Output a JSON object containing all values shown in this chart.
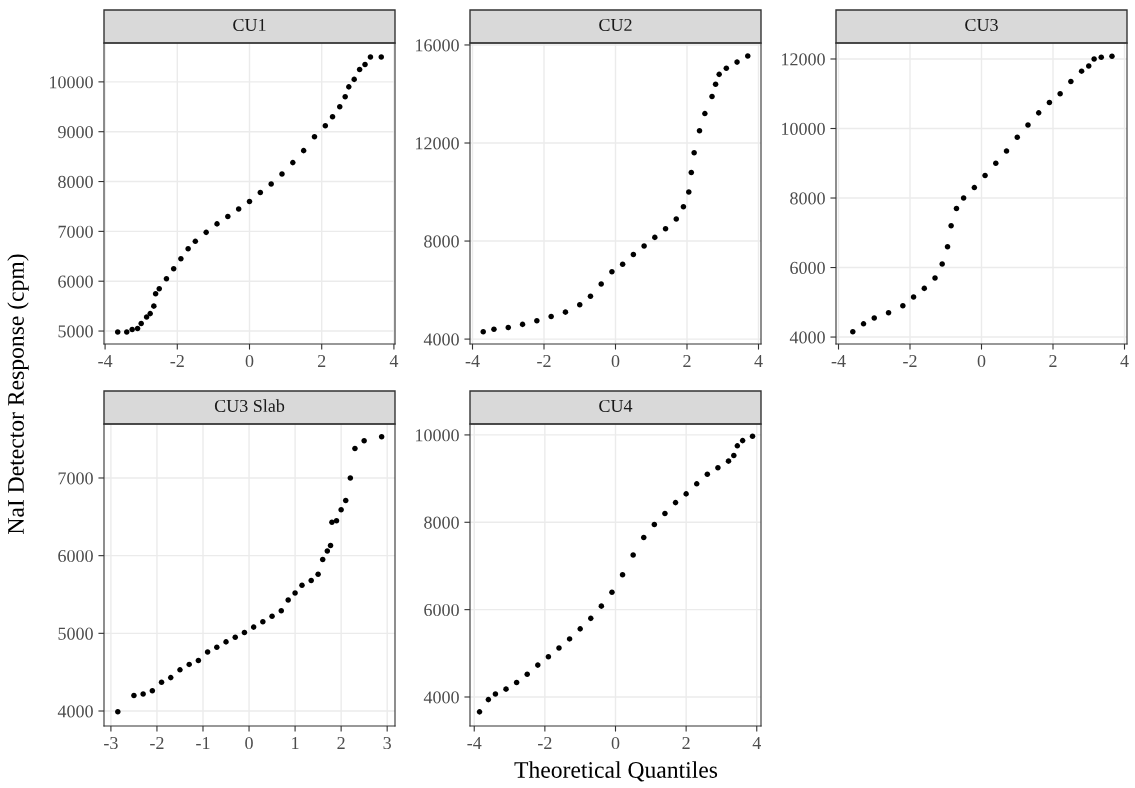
{
  "chart_data": [
    {
      "type": "scatter",
      "title": "CU1",
      "ylabel": "NaI Detector Response (cpm)",
      "color": "#000000",
      "marker": "circle",
      "grid": true,
      "xlim": [
        -4.03,
        4.03
      ],
      "ylim": [
        4740,
        10780
      ],
      "xticks": [
        -4,
        -2,
        0,
        2,
        4
      ],
      "yticks": [
        5000,
        6000,
        7000,
        8000,
        9000,
        10000
      ],
      "x": [
        -3.65,
        -3.4,
        -3.25,
        -3.1,
        -3.0,
        -2.85,
        -2.75,
        -2.65,
        -2.6,
        -2.5,
        -2.3,
        -2.1,
        -1.9,
        -1.7,
        -1.5,
        -1.2,
        -0.9,
        -0.6,
        -0.3,
        0,
        0.3,
        0.6,
        0.9,
        1.2,
        1.5,
        1.8,
        2.1,
        2.3,
        2.5,
        2.65,
        2.75,
        2.9,
        3.05,
        3.2,
        3.35,
        3.65
      ],
      "values": [
        4980,
        4980,
        5030,
        5050,
        5150,
        5280,
        5350,
        5500,
        5750,
        5850,
        6050,
        6250,
        6450,
        6650,
        6800,
        6980,
        7150,
        7300,
        7450,
        7600,
        7780,
        7950,
        8150,
        8380,
        8620,
        8900,
        9120,
        9300,
        9500,
        9700,
        9900,
        10050,
        10250,
        10350,
        10500,
        10500
      ]
    },
    {
      "type": "scatter",
      "title": "CU2",
      "color": "#000000",
      "marker": "circle",
      "grid": true,
      "xlim": [
        -4.07,
        4.07
      ],
      "ylim": [
        3800,
        16080
      ],
      "xticks": [
        -4,
        -2,
        0,
        2,
        4
      ],
      "yticks": [
        4000,
        8000,
        12000,
        16000
      ],
      "x": [
        -3.7,
        -3.4,
        -3.0,
        -2.6,
        -2.2,
        -1.8,
        -1.4,
        -1.0,
        -0.7,
        -0.4,
        -0.1,
        0.2,
        0.5,
        0.8,
        1.1,
        1.4,
        1.7,
        1.9,
        2.05,
        2.12,
        2.2,
        2.35,
        2.5,
        2.7,
        2.8,
        2.9,
        3.1,
        3.4,
        3.7
      ],
      "values": [
        4300,
        4400,
        4470,
        4600,
        4750,
        4920,
        5100,
        5400,
        5750,
        6250,
        6750,
        7050,
        7450,
        7800,
        8150,
        8500,
        8900,
        9400,
        10000,
        10800,
        11600,
        12500,
        13200,
        13900,
        14400,
        14800,
        15050,
        15300,
        15550
      ]
    },
    {
      "type": "scatter",
      "title": "CU3",
      "color": "#000000",
      "marker": "circle",
      "grid": true,
      "xlim": [
        -4.07,
        4.07
      ],
      "ylim": [
        3800,
        12460
      ],
      "xticks": [
        -4,
        -2,
        0,
        2,
        4
      ],
      "yticks": [
        4000,
        6000,
        8000,
        10000,
        12000
      ],
      "x": [
        -3.6,
        -3.3,
        -3.0,
        -2.6,
        -2.2,
        -1.9,
        -1.6,
        -1.3,
        -1.1,
        -0.95,
        -0.85,
        -0.7,
        -0.5,
        -0.2,
        0.1,
        0.4,
        0.7,
        1.0,
        1.3,
        1.6,
        1.9,
        2.2,
        2.5,
        2.8,
        3.0,
        3.15,
        3.35,
        3.65
      ],
      "values": [
        4150,
        4380,
        4550,
        4700,
        4900,
        5150,
        5400,
        5700,
        6100,
        6600,
        7200,
        7700,
        8000,
        8300,
        8650,
        9000,
        9350,
        9750,
        10100,
        10450,
        10750,
        11000,
        11350,
        11650,
        11800,
        12000,
        12050,
        12080
      ]
    },
    {
      "type": "scatter",
      "title": "CU3 Slab",
      "color": "#000000",
      "marker": "circle",
      "grid": true,
      "xlim": [
        -3.15,
        3.17
      ],
      "ylim": [
        3807,
        7695
      ],
      "xticks": [
        -3,
        -2,
        -1,
        0,
        1,
        2,
        3
      ],
      "yticks": [
        4000,
        5000,
        6000,
        7000
      ],
      "x": [
        -2.85,
        -2.5,
        -2.3,
        -2.1,
        -1.9,
        -1.7,
        -1.5,
        -1.3,
        -1.1,
        -0.9,
        -0.7,
        -0.5,
        -0.3,
        -0.1,
        0.1,
        0.3,
        0.5,
        0.7,
        0.85,
        1.0,
        1.15,
        1.35,
        1.5,
        1.6,
        1.7,
        1.77,
        1.8,
        1.9,
        2.0,
        2.1,
        2.2,
        2.3,
        2.5,
        2.88
      ],
      "values": [
        3990,
        4200,
        4220,
        4260,
        4370,
        4430,
        4530,
        4600,
        4650,
        4760,
        4820,
        4890,
        4950,
        5010,
        5080,
        5150,
        5220,
        5290,
        5430,
        5520,
        5620,
        5680,
        5760,
        5950,
        6060,
        6130,
        6430,
        6450,
        6590,
        6710,
        7000,
        7380,
        7480,
        7530
      ]
    },
    {
      "type": "scatter",
      "title": "CU4",
      "xlabel": "Theoretical Quantiles",
      "color": "#000000",
      "marker": "circle",
      "grid": true,
      "xlim": [
        -4.12,
        4.12
      ],
      "ylim": [
        3336,
        10250
      ],
      "xticks": [
        -4,
        -2,
        0,
        2,
        4
      ],
      "yticks": [
        4000,
        6000,
        8000,
        10000
      ],
      "x": [
        -3.85,
        -3.6,
        -3.4,
        -3.1,
        -2.8,
        -2.5,
        -2.2,
        -1.9,
        -1.6,
        -1.3,
        -1.0,
        -0.7,
        -0.4,
        -0.1,
        0.2,
        0.5,
        0.8,
        1.1,
        1.4,
        1.7,
        2.0,
        2.3,
        2.6,
        2.9,
        3.2,
        3.35,
        3.45,
        3.6,
        3.88
      ],
      "values": [
        3660,
        3940,
        4070,
        4180,
        4330,
        4520,
        4730,
        4920,
        5120,
        5330,
        5560,
        5800,
        6080,
        6400,
        6800,
        7250,
        7650,
        7950,
        8200,
        8450,
        8650,
        8880,
        9100,
        9250,
        9400,
        9530,
        9750,
        9870,
        9970
      ]
    }
  ]
}
